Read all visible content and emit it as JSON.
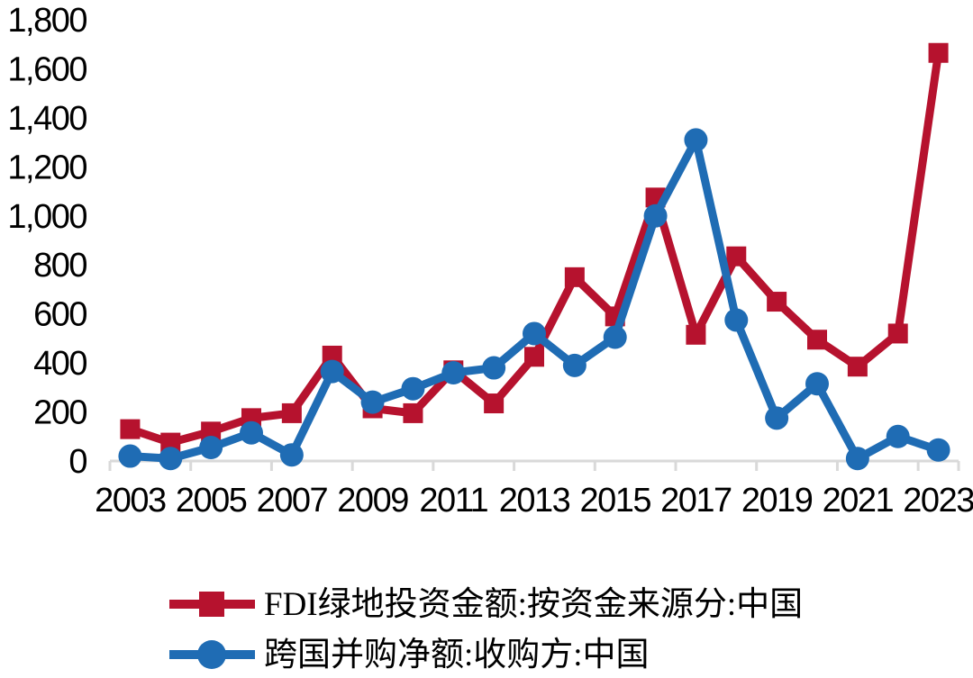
{
  "chart_data": {
    "type": "line",
    "title": "",
    "x": [
      2003,
      2004,
      2005,
      2006,
      2007,
      2008,
      2009,
      2010,
      2011,
      2012,
      2013,
      2014,
      2015,
      2016,
      2017,
      2018,
      2019,
      2020,
      2021,
      2022,
      2023
    ],
    "series": [
      {
        "name": "FDI绿地投资金额:按资金来源分:中国",
        "marker": "square",
        "color": "#B6122E",
        "values": [
          130,
          75,
          120,
          175,
          195,
          430,
          215,
          195,
          370,
          235,
          425,
          750,
          590,
          1075,
          515,
          835,
          650,
          495,
          385,
          520,
          1665
        ]
      },
      {
        "name": "跨国并购净额:收购方:中国",
        "marker": "circle",
        "color": "#1F6CB4",
        "values": [
          20,
          10,
          55,
          115,
          25,
          365,
          240,
          295,
          360,
          380,
          520,
          390,
          505,
          1000,
          1310,
          575,
          175,
          315,
          10,
          100,
          45
        ]
      }
    ],
    "ylim": [
      0,
      1800
    ],
    "ytick_interval": 200,
    "ytick_labels": [
      "0",
      "200",
      "400",
      "600",
      "800",
      "1,000",
      "1,200",
      "1,400",
      "1,600",
      "1,800"
    ],
    "xtick_labels": [
      "2003",
      "2005",
      "2007",
      "2009",
      "2011",
      "2013",
      "2015",
      "2017",
      "2019",
      "2021",
      "2023"
    ],
    "xtick_every": 2,
    "grid": false,
    "legend_position": "bottom-left",
    "axis_color": "#D9D9D9",
    "text_color": "#000000",
    "background_color": "#FFFFFF"
  }
}
